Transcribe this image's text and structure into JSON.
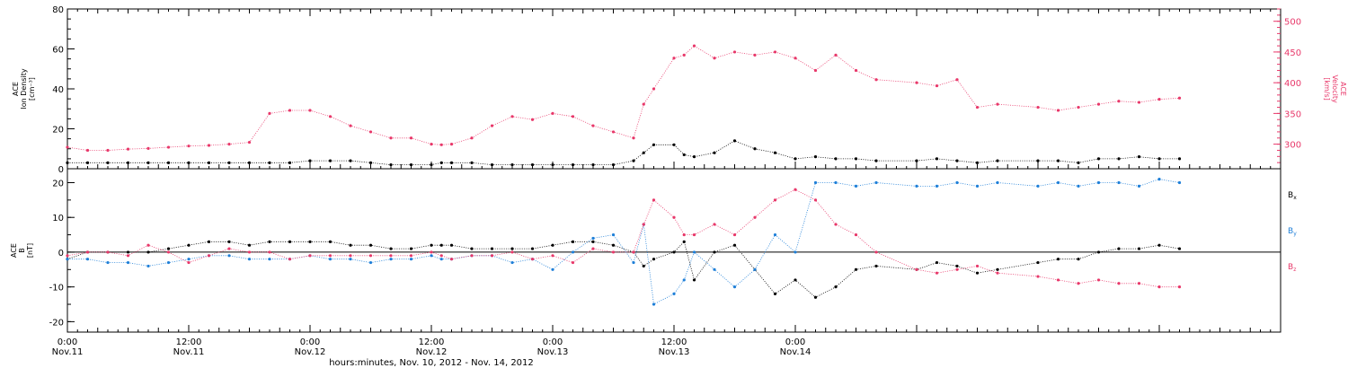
{
  "chart_data": [
    {
      "type": "scatter",
      "panel": "top",
      "ylabel_left": [
        "ACE",
        "Ion Density",
        "[cm⁻³]"
      ],
      "ylabel_right": [
        "ACE",
        "Velocity",
        "[km/s]"
      ],
      "ylim_left": [
        0,
        80
      ],
      "ylim_right": [
        260,
        520
      ],
      "yticks_left": [
        "0",
        "20",
        "40",
        "60",
        "80"
      ],
      "yticks_right": [
        "300",
        "350",
        "400",
        "450",
        "500"
      ],
      "colors": {
        "density": "#000000",
        "velocity": "#e8386a"
      },
      "series": [
        {
          "name": "Ion Density",
          "axis": "left",
          "color": "#000000",
          "x": [
            0,
            2,
            4,
            6,
            8,
            10,
            12,
            14,
            16,
            18,
            20,
            22,
            24,
            26,
            28,
            30,
            32,
            34,
            36,
            37,
            38,
            40,
            42,
            44,
            46,
            48,
            50,
            52,
            54,
            56,
            57,
            58,
            60,
            61,
            62,
            64,
            66,
            68,
            70,
            72,
            74,
            76,
            78,
            80,
            84,
            86,
            88,
            90,
            92,
            96,
            98,
            100,
            102,
            104,
            106,
            108,
            110
          ],
          "y": [
            3,
            3,
            3,
            3,
            3,
            3,
            3,
            3,
            3,
            3,
            3,
            3,
            4,
            4,
            4,
            3,
            2,
            2,
            2,
            3,
            3,
            3,
            2,
            2,
            2,
            2,
            2,
            2,
            2,
            4,
            8,
            12,
            12,
            7,
            6,
            8,
            14,
            10,
            8,
            5,
            6,
            5,
            5,
            4,
            4,
            5,
            4,
            3,
            4,
            4,
            4,
            3,
            5,
            5,
            6,
            5,
            5
          ]
        },
        {
          "name": "Velocity",
          "axis": "right",
          "color": "#e8386a",
          "x": [
            0,
            2,
            4,
            6,
            8,
            10,
            12,
            14,
            16,
            18,
            20,
            22,
            24,
            26,
            28,
            30,
            32,
            34,
            36,
            37,
            38,
            40,
            42,
            44,
            46,
            48,
            50,
            52,
            54,
            56,
            57,
            58,
            60,
            61,
            62,
            64,
            66,
            68,
            70,
            72,
            74,
            76,
            78,
            80,
            84,
            86,
            88,
            90,
            92,
            96,
            98,
            100,
            102,
            104,
            106,
            108,
            110
          ],
          "y": [
            295,
            290,
            290,
            292,
            293,
            295,
            297,
            298,
            300,
            303,
            350,
            355,
            355,
            345,
            330,
            320,
            310,
            310,
            300,
            299,
            300,
            310,
            330,
            345,
            340,
            350,
            345,
            330,
            320,
            310,
            365,
            390,
            440,
            445,
            460,
            440,
            450,
            445,
            450,
            440,
            420,
            445,
            420,
            405,
            400,
            395,
            405,
            360,
            365,
            360,
            355,
            360,
            365,
            370,
            368,
            373,
            375
          ]
        }
      ]
    },
    {
      "type": "scatter",
      "panel": "bottom",
      "ylabel": [
        "ACE",
        "B",
        "[nT]"
      ],
      "ylim": [
        -23,
        24
      ],
      "yticks": [
        "-20",
        "-10",
        "0",
        "10",
        "20"
      ],
      "legend_position": "right",
      "legend": [
        {
          "label": "Bx",
          "main": "B",
          "sub": "x",
          "color": "#000000"
        },
        {
          "label": "By",
          "main": "B",
          "sub": "y",
          "color": "#1e7fd8"
        },
        {
          "label": "Bz",
          "main": "B",
          "sub": "z",
          "color": "#e8386a"
        }
      ],
      "series": [
        {
          "name": "Bx",
          "color": "#000000",
          "x": [
            0,
            2,
            4,
            6,
            8,
            10,
            12,
            14,
            16,
            18,
            20,
            22,
            24,
            26,
            28,
            30,
            32,
            34,
            36,
            37,
            38,
            40,
            42,
            44,
            46,
            48,
            50,
            52,
            54,
            56,
            57,
            58,
            60,
            61,
            62,
            64,
            66,
            68,
            70,
            72,
            74,
            76,
            78,
            80,
            84,
            86,
            88,
            90,
            92,
            96,
            98,
            100,
            102,
            104,
            106,
            108,
            110
          ],
          "y": [
            -2,
            0,
            0,
            0,
            0,
            1,
            2,
            3,
            3,
            2,
            3,
            3,
            3,
            3,
            2,
            2,
            1,
            1,
            2,
            2,
            2,
            1,
            1,
            1,
            1,
            2,
            3,
            3,
            2,
            0,
            -4,
            -2,
            0,
            3,
            -8,
            0,
            2,
            -5,
            -12,
            -8,
            -13,
            -10,
            -5,
            -4,
            -5,
            -3,
            -4,
            -6,
            -5,
            -3,
            -2,
            -2,
            0,
            1,
            1,
            2,
            1
          ]
        },
        {
          "name": "By",
          "color": "#1e7fd8",
          "x": [
            0,
            2,
            4,
            6,
            8,
            10,
            12,
            14,
            16,
            18,
            20,
            22,
            24,
            26,
            28,
            30,
            32,
            34,
            36,
            37,
            38,
            40,
            42,
            44,
            46,
            48,
            50,
            52,
            54,
            56,
            57,
            58,
            60,
            61,
            62,
            64,
            66,
            68,
            70,
            72,
            74,
            76,
            78,
            80,
            84,
            86,
            88,
            90,
            92,
            96,
            98,
            100,
            102,
            104,
            106,
            108,
            110
          ],
          "y": [
            -2,
            -2,
            -3,
            -3,
            -4,
            -3,
            -2,
            -1,
            -1,
            -2,
            -2,
            -2,
            -1,
            -2,
            -2,
            -3,
            -2,
            -2,
            -1,
            -2,
            -2,
            -1,
            -1,
            -3,
            -2,
            -5,
            0,
            4,
            5,
            -3,
            8,
            -15,
            -12,
            -8,
            0,
            -5,
            -10,
            -5,
            5,
            0,
            20,
            20,
            19,
            20,
            19,
            19,
            20,
            19,
            20,
            19,
            20,
            19,
            20,
            20,
            19,
            21,
            20
          ]
        },
        {
          "name": "Bz",
          "color": "#e8386a",
          "x": [
            0,
            2,
            4,
            6,
            8,
            10,
            12,
            14,
            16,
            18,
            20,
            22,
            24,
            26,
            28,
            30,
            32,
            34,
            36,
            37,
            38,
            40,
            42,
            44,
            46,
            48,
            50,
            52,
            54,
            56,
            57,
            58,
            60,
            61,
            62,
            64,
            66,
            68,
            70,
            72,
            74,
            76,
            78,
            80,
            84,
            86,
            88,
            90,
            92,
            96,
            98,
            100,
            102,
            104,
            106,
            108,
            110
          ],
          "y": [
            -1,
            0,
            0,
            -1,
            2,
            0,
            -3,
            -1,
            1,
            0,
            0,
            -2,
            -1,
            -1,
            -1,
            -1,
            -1,
            -1,
            0,
            -1,
            -2,
            -1,
            -1,
            0,
            -2,
            -1,
            -3,
            1,
            0,
            0,
            8,
            15,
            10,
            5,
            5,
            8,
            5,
            10,
            15,
            18,
            15,
            8,
            5,
            0,
            -5,
            -6,
            -5,
            -4,
            -6,
            -7,
            -8,
            -9,
            -8,
            -9,
            -9,
            -10,
            -10
          ]
        }
      ]
    },
    {
      "type": "axis",
      "xlim": [
        0,
        120
      ],
      "xticks": [
        {
          "x": 0,
          "time": "0:00",
          "date": "Nov.11"
        },
        {
          "x": 12,
          "time": "12:00",
          "date": "Nov.11"
        },
        {
          "x": 24,
          "time": "0:00",
          "date": "Nov.12"
        },
        {
          "x": 36,
          "time": "12:00",
          "date": "Nov.12"
        },
        {
          "x": 48,
          "time": "0:00",
          "date": "Nov.13"
        },
        {
          "x": 60,
          "time": "12:00",
          "date": "Nov.13"
        },
        {
          "x": 72,
          "time": "0:00",
          "date": "Nov.14"
        }
      ],
      "xlabel": "hours:minutes, Nov. 10, 2012 - Nov. 14, 2012"
    }
  ]
}
